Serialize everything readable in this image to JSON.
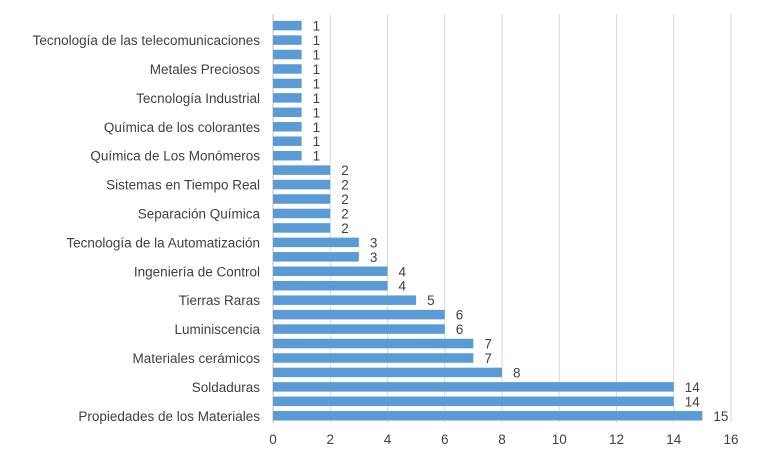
{
  "chart_data": {
    "type": "bar",
    "orientation": "horizontal",
    "title": "",
    "xlabel": "",
    "ylabel": "",
    "xlim": [
      0,
      16
    ],
    "x_ticks": [
      0,
      2,
      4,
      6,
      8,
      10,
      12,
      14,
      16
    ],
    "grid": "vertical",
    "legend": "none",
    "bar_color": "#5B9BD5",
    "grid_color": "#D9D9D9",
    "categories": [
      "Propiedades de los Materiales",
      "",
      "Soldaduras",
      "",
      "Materiales cerámicos",
      "",
      "Luminiscencia",
      "",
      "Tierras Raras",
      "",
      "Ingeniería de Control",
      "",
      "Tecnología de la Automatización",
      "",
      "Separación Química",
      "",
      "Sistemas en Tiempo Real",
      "",
      "Química de Los Monómeros",
      "",
      "Química de los colorantes",
      "",
      "Tecnología Industrial",
      "",
      "Metales Preciosos",
      "",
      "Tecnología de las telecomunicaciones",
      ""
    ],
    "values": [
      15,
      14,
      14,
      8,
      7,
      7,
      6,
      6,
      5,
      4,
      4,
      3,
      3,
      2,
      2,
      2,
      2,
      2,
      1,
      1,
      1,
      1,
      1,
      1,
      1,
      1,
      1,
      1
    ]
  }
}
